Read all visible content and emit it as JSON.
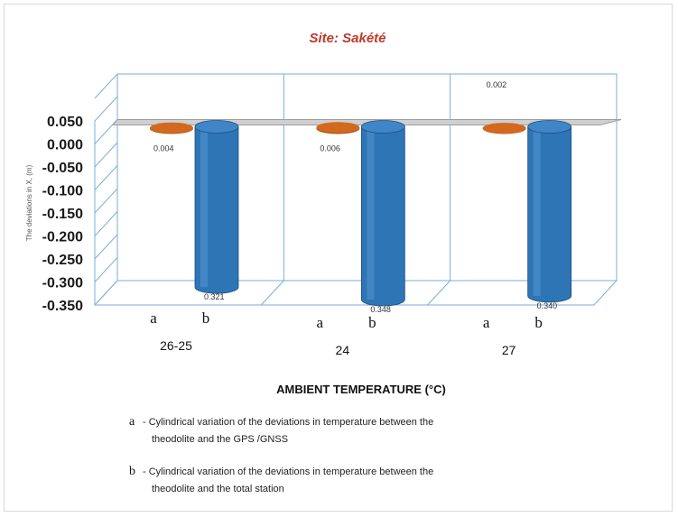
{
  "chart_data": {
    "type": "bar",
    "title": "Site: Sakété",
    "ylabel": "The deviations in X, (m)",
    "xlabel": "AMBIENT TEMPERATURE (°C)",
    "ylim": [
      -0.35,
      0.05
    ],
    "yticks": [
      "0.050",
      "0.000",
      "-0.050",
      "-0.100",
      "-0.150",
      "-0.200",
      "-0.250",
      "-0.300",
      "-0.350"
    ],
    "bar_shape": "cylinder",
    "groups": [
      {
        "name": "26-25",
        "a_label": "a",
        "b_label": "b",
        "a_value": 0.004,
        "b_value": -0.321,
        "a_text": "0.004",
        "b_text": "0.321"
      },
      {
        "name": "24",
        "a_label": "a",
        "b_label": "b",
        "a_value": 0.006,
        "b_value": -0.348,
        "a_text": "0.006",
        "b_text": "0.348"
      },
      {
        "name": "27",
        "a_label": "a",
        "b_label": "b",
        "a_value": 0.002,
        "b_value": -0.34,
        "a_text": "0.002",
        "b_text": "0.340"
      }
    ],
    "colors": {
      "a": "#d2691e",
      "b": "#2e75b6",
      "grid": "#7aaedb",
      "zero_plane": "#9e9e9e"
    },
    "legend": [
      {
        "key": "a",
        "line1": "- Cylindrical variation of the deviations in temperature between the",
        "line2": "theodolite and the GPS /GNSS"
      },
      {
        "key": "b",
        "line1": "- Cylindrical variation of the deviations in temperature between the",
        "line2": "theodolite and the total station"
      }
    ]
  }
}
